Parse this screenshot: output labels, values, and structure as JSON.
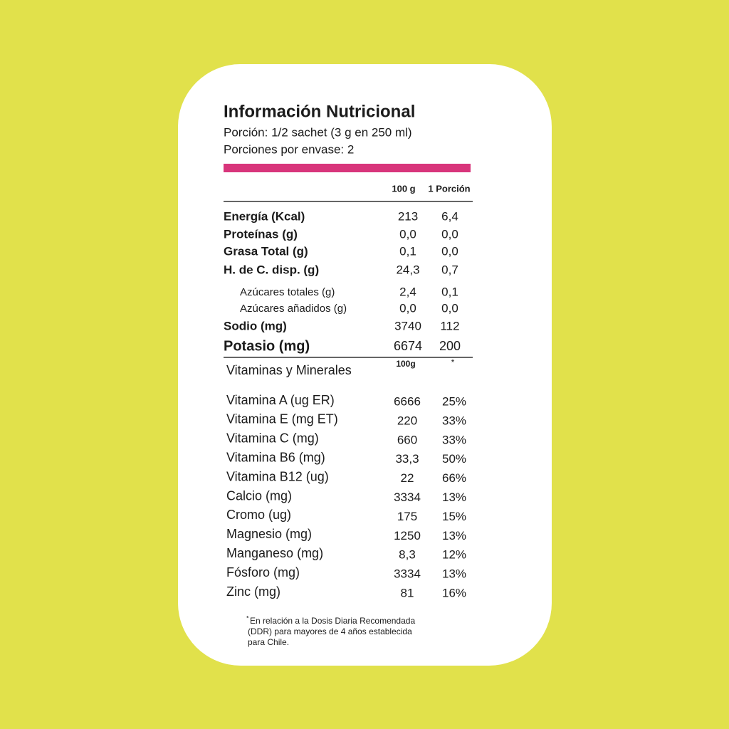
{
  "header": {
    "title": "Información Nutricional",
    "serving": "Porción:  1/2 sachet (3 g en 250 ml)",
    "servings_per_container": "Porciones por envase: 2"
  },
  "table": {
    "columns": [
      "100 g",
      "1 Porción"
    ],
    "rows": [
      [
        "Energía (Kcal)",
        "213",
        "6,4"
      ],
      [
        "Proteínas (g)",
        "0,0",
        "0,0"
      ],
      [
        "Grasa Total (g)",
        "0,1",
        "0,0"
      ],
      [
        "H. de C. disp. (g)",
        "24,3",
        "0,7"
      ],
      [
        "Azúcares totales (g)",
        "2,4",
        "0,1"
      ],
      [
        "Azúcares añadidos (g)",
        "0,0",
        "0,0"
      ],
      [
        "Sodio (mg)",
        "3740",
        "112"
      ],
      [
        "Potasio (mg)",
        "6674",
        "200"
      ]
    ]
  },
  "vitamins": {
    "title": "Vitaminas y Minerales",
    "columns": [
      "100g",
      "*"
    ],
    "rows": [
      [
        "Vitamina A (ug ER)",
        "6666",
        "25%"
      ],
      [
        "Vitamina E (mg ET)",
        "220",
        "33%"
      ],
      [
        "Vitamina C (mg)",
        "660",
        "33%"
      ],
      [
        "Vitamina B6 (mg)",
        "33,3",
        "50%"
      ],
      [
        "Vitamina B12 (ug)",
        "22",
        "66%"
      ],
      [
        "Calcio (mg)",
        "3334",
        "13%"
      ],
      [
        "Cromo (ug)",
        "175",
        "15%"
      ],
      [
        "Magnesio (mg)",
        "1250",
        "13%"
      ],
      [
        "Manganeso (mg)",
        "8,3",
        "12%"
      ],
      [
        "Fósforo (mg)",
        "3334",
        "13%"
      ],
      [
        "Zinc (mg)",
        "81",
        "16%"
      ]
    ]
  },
  "footnote": {
    "marker": "*",
    "lines": [
      "En relación a la Dosis Diaria Recomendada",
      "(DDR) para mayores de 4 años establecida",
      "para Chile."
    ]
  }
}
